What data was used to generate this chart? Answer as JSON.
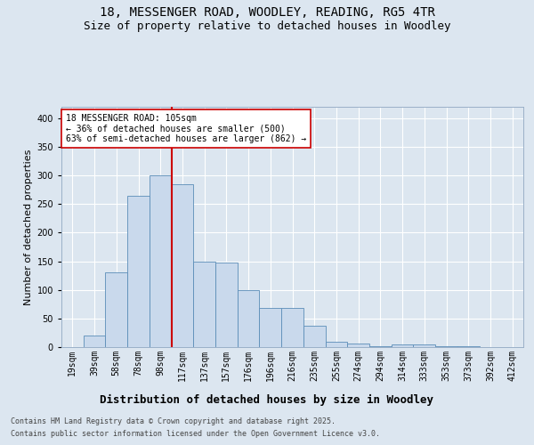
{
  "title_line1": "18, MESSENGER ROAD, WOODLEY, READING, RG5 4TR",
  "title_line2": "Size of property relative to detached houses in Woodley",
  "xlabel": "Distribution of detached houses by size in Woodley",
  "ylabel": "Number of detached properties",
  "footer_line1": "Contains HM Land Registry data © Crown copyright and database right 2025.",
  "footer_line2": "Contains public sector information licensed under the Open Government Licence v3.0.",
  "bar_labels": [
    "19sqm",
    "39sqm",
    "58sqm",
    "78sqm",
    "98sqm",
    "117sqm",
    "137sqm",
    "157sqm",
    "176sqm",
    "196sqm",
    "216sqm",
    "235sqm",
    "255sqm",
    "274sqm",
    "294sqm",
    "314sqm",
    "333sqm",
    "353sqm",
    "373sqm",
    "392sqm",
    "412sqm"
  ],
  "bar_values": [
    0,
    20,
    130,
    265,
    300,
    285,
    150,
    148,
    100,
    68,
    68,
    37,
    10,
    7,
    2,
    5,
    5,
    2,
    1,
    0,
    0
  ],
  "bar_color": "#c9d9ec",
  "bar_edge_color": "#5b8db8",
  "background_color": "#dce6f0",
  "plot_bg_color": "#dce6f0",
  "grid_color": "#ffffff",
  "vline_x": 4.5,
  "vline_color": "#cc0000",
  "annotation_text": "18 MESSENGER ROAD: 105sqm\n← 36% of detached houses are smaller (500)\n63% of semi-detached houses are larger (862) →",
  "annotation_box_color": "#ffffff",
  "annotation_box_edge": "#cc0000",
  "ylim": [
    0,
    420
  ],
  "yticks": [
    0,
    50,
    100,
    150,
    200,
    250,
    300,
    350,
    400
  ],
  "title_fontsize": 10,
  "subtitle_fontsize": 9,
  "ylabel_fontsize": 8,
  "xlabel_fontsize": 9,
  "tick_fontsize": 7,
  "annotation_fontsize": 7,
  "footer_fontsize": 6
}
